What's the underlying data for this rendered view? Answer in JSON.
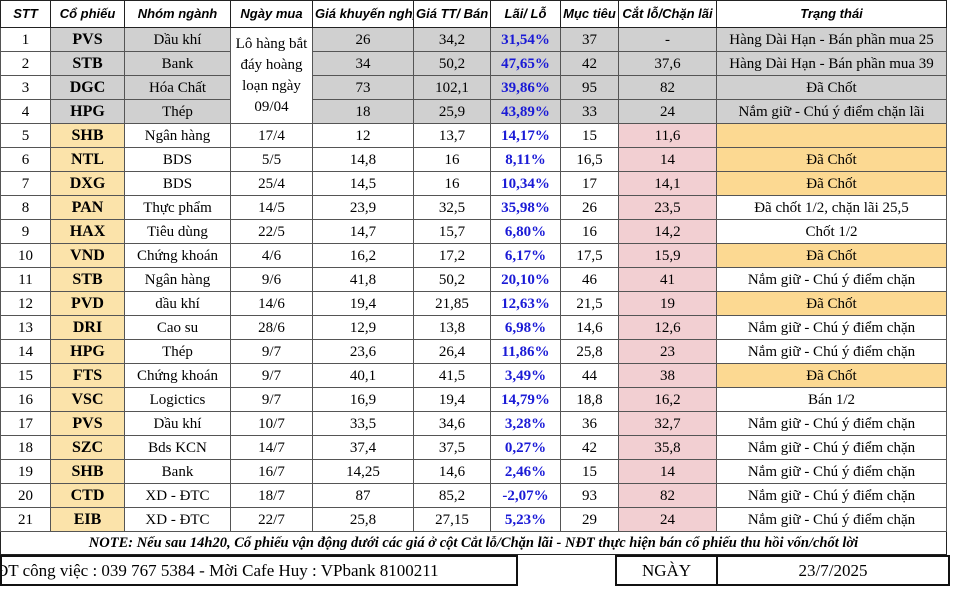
{
  "table": {
    "headers": [
      "STT",
      "Cổ phiếu",
      "Nhóm ngành",
      "Ngày mua",
      "Giá khuyến nghị",
      "Giá TT/ Bán",
      "Lãi/ Lỗ",
      "Mục tiêu",
      "Cắt lỗ/Chặn lãi",
      "Trạng thái"
    ],
    "merged_date": "Lô hàng bắt đáy hoàng loạn ngày 09/04",
    "rows": [
      {
        "stt": "1",
        "ticker": "PVS",
        "sector": "Dầu khí",
        "rec": "26",
        "price": "34,2",
        "pnl": "31,54%",
        "target": "37",
        "stop": "-",
        "status": "Hàng Dài Hạn - Bán phần mua 25"
      },
      {
        "stt": "2",
        "ticker": "STB",
        "sector": "Bank",
        "rec": "34",
        "price": "50,2",
        "pnl": "47,65%",
        "target": "42",
        "stop": "37,6",
        "status": "Hàng Dài Hạn - Bán phần mua 39"
      },
      {
        "stt": "3",
        "ticker": "DGC",
        "sector": "Hóa Chất",
        "rec": "73",
        "price": "102,1",
        "pnl": "39,86%",
        "target": "95",
        "stop": "82",
        "status": "Đã Chốt"
      },
      {
        "stt": "4",
        "ticker": "HPG",
        "sector": "Thép",
        "rec": "18",
        "price": "25,9",
        "pnl": "43,89%",
        "target": "33",
        "stop": "24",
        "status": "Nắm giữ - Chú ý điểm chặn lãi"
      },
      {
        "stt": "5",
        "ticker": "SHB",
        "sector": "Ngân hàng",
        "date": "17/4",
        "rec": "12",
        "price": "13,7",
        "pnl": "14,17%",
        "target": "15",
        "stop": "11,6"
      },
      {
        "stt": "6",
        "ticker": "NTL",
        "sector": "BDS",
        "date": "5/5",
        "rec": "14,8",
        "price": "16",
        "pnl": "8,11%",
        "target": "16,5",
        "stop": "14",
        "status": "Đã Chốt"
      },
      {
        "stt": "7",
        "ticker": "DXG",
        "sector": "BDS",
        "date": "25/4",
        "rec": "14,5",
        "price": "16",
        "pnl": "10,34%",
        "target": "17",
        "stop": "14,1",
        "status": "Đã Chốt"
      },
      {
        "stt": "8",
        "ticker": "PAN",
        "sector": "Thực phẩm",
        "date": "14/5",
        "rec": "23,9",
        "price": "32,5",
        "pnl": "35,98%",
        "target": "26",
        "stop": "23,5",
        "status": "Đã chốt 1/2, chặn lãi 25,5"
      },
      {
        "stt": "9",
        "ticker": "HAX",
        "sector": "Tiêu dùng",
        "date": "22/5",
        "rec": "14,7",
        "price": "15,7",
        "pnl": "6,80%",
        "target": "16",
        "stop": "14,2",
        "status": "Chốt 1/2"
      },
      {
        "stt": "10",
        "ticker": "VND",
        "sector": "Chứng khoán",
        "date": "4/6",
        "rec": "16,2",
        "price": "17,2",
        "pnl": "6,17%",
        "target": "17,5",
        "stop": "15,9",
        "status": "Đã Chốt"
      },
      {
        "stt": "11",
        "ticker": "STB",
        "sector": "Ngân hàng",
        "date": "9/6",
        "rec": "41,8",
        "price": "50,2",
        "pnl": "20,10%",
        "target": "46",
        "stop": "41",
        "status": "Nắm giữ - Chú ý điểm chặn"
      },
      {
        "stt": "12",
        "ticker": "PVD",
        "sector": "dầu khí",
        "date": "14/6",
        "rec": "19,4",
        "price": "21,85",
        "pnl": "12,63%",
        "target": "21,5",
        "stop": "19",
        "status": "Đã Chốt"
      },
      {
        "stt": "13",
        "ticker": "DRI",
        "sector": "Cao su",
        "date": "28/6",
        "rec": "12,9",
        "price": "13,8",
        "pnl": "6,98%",
        "target": "14,6",
        "stop": "12,6",
        "status": "Nắm giữ - Chú ý điểm chặn"
      },
      {
        "stt": "14",
        "ticker": "HPG",
        "sector": "Thép",
        "date": "9/7",
        "rec": "23,6",
        "price": "26,4",
        "pnl": "11,86%",
        "target": "25,8",
        "stop": "23",
        "status": "Nắm giữ - Chú ý điểm chặn"
      },
      {
        "stt": "15",
        "ticker": "FTS",
        "sector": "Chứng khoán",
        "date": "9/7",
        "rec": "40,1",
        "price": "41,5",
        "pnl": "3,49%",
        "target": "44",
        "stop": "38",
        "status": "Đã Chốt"
      },
      {
        "stt": "16",
        "ticker": "VSC",
        "sector": "Logictics",
        "date": "9/7",
        "rec": "16,9",
        "price": "19,4",
        "pnl": "14,79%",
        "target": "18,8",
        "stop": "16,2",
        "status": "Bán 1/2"
      },
      {
        "stt": "17",
        "ticker": "PVS",
        "sector": "Dầu khí",
        "date": "10/7",
        "rec": "33,5",
        "price": "34,6",
        "pnl": "3,28%",
        "target": "36",
        "stop": "32,7",
        "status": "Nắm giữ - Chú ý điểm chặn"
      },
      {
        "stt": "18",
        "ticker": "SZC",
        "sector": "Bds KCN",
        "date": "14/7",
        "rec": "37,4",
        "price": "37,5",
        "pnl": "0,27%",
        "target": "42",
        "stop": "35,8",
        "status": "Nắm giữ - Chú ý điểm chặn"
      },
      {
        "stt": "19",
        "ticker": "SHB",
        "sector": "Bank",
        "date": "16/7",
        "rec": "14,25",
        "price": "14,6",
        "pnl": "2,46%",
        "target": "15",
        "stop": "14",
        "status": "Nắm giữ - Chú ý điểm chặn"
      },
      {
        "stt": "20",
        "ticker": "CTD",
        "sector": "XD - ĐTC",
        "date": "18/7",
        "rec": "87",
        "price": "85,2",
        "pnl": "-2,07%",
        "target": "93",
        "stop": "82",
        "status": "Nắm giữ - Chú ý điểm chặn"
      },
      {
        "stt": "21",
        "ticker": "EIB",
        "sector": "XD - ĐTC",
        "date": "22/7",
        "rec": "25,8",
        "price": "27,15",
        "pnl": "5,23%",
        "target": "29",
        "stop": "24",
        "status": "Nắm giữ - Chú ý điểm chặn"
      }
    ]
  },
  "note": "NOTE:  Nếu sau 14h20, Cổ phiếu vận động dưới các giá ở cột Cắt lỗ/Chặn lãi - NĐT thực hiện bán cổ phiếu thu hồi vốn/chốt lời",
  "footer": {
    "contact": "ĐT công việc : 039 767 5384 - Mời Cafe Huy : VPbank 8100211",
    "date_label": "NGÀY",
    "date": "23/7/2025"
  }
}
